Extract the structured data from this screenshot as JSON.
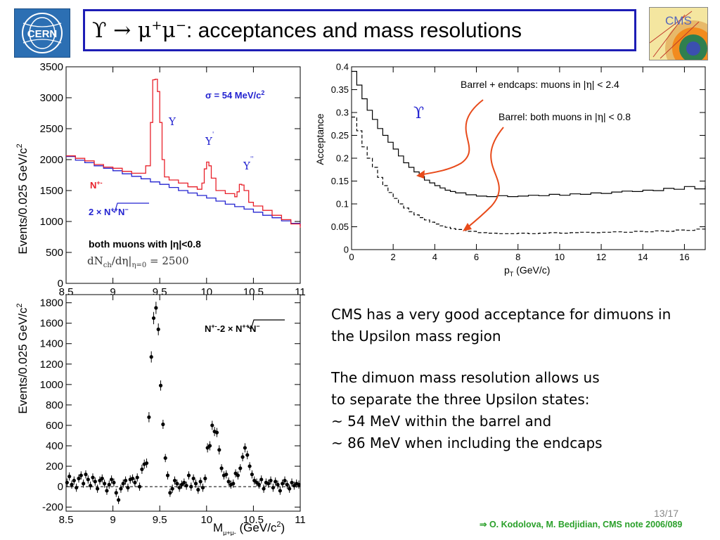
{
  "slide": {
    "title_upsilon": "ϒ",
    "title_arrow": " → μ",
    "title_plus": "+",
    "title_mu": "μ",
    "title_minus": "−",
    "title_rest": ": acceptances and mass resolutions",
    "page_number": "13/17",
    "reference": "⇒ O. Kodolova, M. Bedjidian, CMS note 2006/089",
    "logos": {
      "left": "CERN",
      "right": "CMS"
    },
    "text_block_1": [
      "CMS has a very good acceptance for dimuons in",
      "the Upsilon mass region"
    ],
    "text_block_2": [
      "The dimuon mass resolution allows us",
      "to separate the three Upsilon states:",
      "~ 54 MeV within the barrel and",
      "~ 86 MeV when including the endcaps"
    ]
  },
  "colors": {
    "title_border": "#1d1db5",
    "red": "#e8202a",
    "blue": "#2323d0",
    "reference_green": "#2aa02a",
    "arrow": "#e84a1a"
  },
  "chart_data": [
    {
      "type": "line",
      "ylabel": "Events/0.025 GeV/c",
      "ylabel_sup": "2",
      "xlim": [
        8.5,
        11
      ],
      "ylim": [
        0,
        3500
      ],
      "x_ticks": [
        "8.5",
        "9",
        "9.5",
        "10",
        "10.5",
        "11"
      ],
      "y_ticks": [
        "0",
        "500",
        "1000",
        "1500",
        "2000",
        "2500",
        "3000",
        "3500"
      ],
      "annotations": {
        "sigma": "σ = 54 MeV/c",
        "sigma_sup": "2",
        "peak1": "Υ",
        "peak2": "Υ",
        "peak2_mark": "'",
        "peak3": "Υ",
        "peak3_mark": "''",
        "red_label": "N",
        "red_label_sup": "+-",
        "blue_label_pre": "2 × ",
        "blue_label_sqrt": "N",
        "blue_label_sup1": "++",
        "blue_label_mid": "N",
        "blue_label_sup2": "−",
        "cut_text": "both muons with |η|<0.8",
        "mult_text": "dN",
        "mult_sub": "ch",
        "mult_mid": "/dη|",
        "mult_sub2": "η=0",
        "mult_val": " = 2500"
      },
      "series": [
        {
          "name": "N+-",
          "color": "#e8202a",
          "x": [
            8.5,
            8.6,
            8.7,
            8.8,
            8.9,
            9.0,
            9.1,
            9.2,
            9.3,
            9.35,
            9.4,
            9.425,
            9.45,
            9.475,
            9.5,
            9.525,
            9.55,
            9.6,
            9.7,
            9.8,
            9.9,
            9.95,
            9.975,
            10.0,
            10.025,
            10.05,
            10.1,
            10.2,
            10.3,
            10.325,
            10.35,
            10.375,
            10.4,
            10.45,
            10.5,
            10.6,
            10.7,
            10.8,
            10.9,
            11.0
          ],
          "values": [
            2060,
            2020,
            1980,
            1920,
            1880,
            1860,
            1810,
            1780,
            1780,
            1900,
            2600,
            3290,
            3300,
            3100,
            2600,
            2000,
            1720,
            1670,
            1620,
            1560,
            1520,
            1620,
            1850,
            1960,
            1900,
            1700,
            1500,
            1450,
            1400,
            1480,
            1600,
            1590,
            1500,
            1310,
            1250,
            1180,
            1100,
            1030,
            960,
            900
          ]
        },
        {
          "name": "2×sqrt(N++N−−)",
          "color": "#2323d0",
          "x": [
            8.5,
            8.6,
            8.7,
            8.8,
            8.9,
            9.0,
            9.1,
            9.2,
            9.3,
            9.4,
            9.5,
            9.6,
            9.7,
            9.8,
            9.9,
            10.0,
            10.1,
            10.2,
            10.3,
            10.4,
            10.5,
            10.6,
            10.7,
            10.8,
            10.9,
            11.0
          ],
          "values": [
            2050,
            1990,
            1950,
            1900,
            1860,
            1820,
            1770,
            1730,
            1690,
            1640,
            1600,
            1550,
            1500,
            1460,
            1420,
            1380,
            1330,
            1280,
            1240,
            1200,
            1150,
            1100,
            1060,
            1010,
            970,
            920
          ]
        }
      ]
    },
    {
      "type": "scatter",
      "ylabel": "Events/0.025 GeV/c",
      "ylabel_sup": "2",
      "xlabel": "M",
      "xlabel_sub": "μ+μ-",
      "xlabel_rest": " (GeV/c",
      "xlabel_sup": "2",
      "xlabel_end": ")",
      "xlim": [
        8.5,
        11
      ],
      "ylim": [
        -240,
        1880
      ],
      "x_ticks": [
        "8.5",
        "9",
        "9.5",
        "10",
        "10.5",
        "11"
      ],
      "y_ticks": [
        "-200",
        "0",
        "200",
        "400",
        "600",
        "800",
        "1000",
        "1200",
        "1400",
        "1600",
        "1800"
      ],
      "annotations": {
        "label_pre": "N",
        "label_sup": "+-",
        "label_mid": "-2 × ",
        "label_sqrt": "N",
        "label_sup1": "++",
        "label_n": "N",
        "label_sup2": "−"
      },
      "points": {
        "x": [
          8.51,
          8.535,
          8.56,
          8.585,
          8.61,
          8.635,
          8.66,
          8.685,
          8.71,
          8.735,
          8.76,
          8.785,
          8.81,
          8.835,
          8.86,
          8.885,
          8.91,
          8.935,
          8.96,
          8.985,
          9.01,
          9.035,
          9.06,
          9.085,
          9.11,
          9.135,
          9.16,
          9.185,
          9.21,
          9.235,
          9.26,
          9.285,
          9.31,
          9.335,
          9.36,
          9.385,
          9.41,
          9.435,
          9.46,
          9.485,
          9.51,
          9.535,
          9.56,
          9.585,
          9.61,
          9.635,
          9.66,
          9.685,
          9.71,
          9.735,
          9.76,
          9.785,
          9.81,
          9.835,
          9.86,
          9.885,
          9.91,
          9.935,
          9.96,
          9.985,
          10.01,
          10.035,
          10.06,
          10.085,
          10.11,
          10.135,
          10.16,
          10.185,
          10.21,
          10.235,
          10.26,
          10.285,
          10.31,
          10.335,
          10.36,
          10.385,
          10.41,
          10.435,
          10.46,
          10.485,
          10.51,
          10.535,
          10.56,
          10.585,
          10.61,
          10.635,
          10.66,
          10.685,
          10.71,
          10.735,
          10.76,
          10.785,
          10.81,
          10.835,
          10.86,
          10.885,
          10.91,
          10.935,
          10.96,
          10.985
        ],
        "values": [
          40,
          100,
          20,
          60,
          -10,
          80,
          110,
          30,
          120,
          70,
          10,
          90,
          50,
          -20,
          60,
          80,
          30,
          -40,
          20,
          70,
          40,
          -60,
          -130,
          -20,
          30,
          60,
          -10,
          70,
          80,
          40,
          90,
          0,
          170,
          220,
          230,
          680,
          1270,
          1650,
          1750,
          1540,
          990,
          610,
          280,
          110,
          -60,
          -20,
          60,
          30,
          -10,
          20,
          40,
          10,
          110,
          0,
          80,
          30,
          -30,
          50,
          -10,
          80,
          380,
          400,
          600,
          540,
          530,
          360,
          180,
          110,
          120,
          50,
          20,
          30,
          130,
          110,
          180,
          290,
          380,
          310,
          200,
          120,
          60,
          40,
          20,
          70,
          -20,
          40,
          30,
          60,
          -10,
          50,
          20,
          -40,
          30,
          60,
          20,
          -20,
          40,
          10,
          30,
          20
        ],
        "errors": [
          40,
          40,
          40,
          40,
          40,
          40,
          40,
          40,
          40,
          40,
          40,
          40,
          40,
          40,
          40,
          40,
          40,
          40,
          40,
          40,
          40,
          40,
          40,
          40,
          40,
          40,
          40,
          40,
          40,
          40,
          40,
          40,
          45,
          45,
          45,
          50,
          55,
          60,
          60,
          58,
          50,
          45,
          40,
          40,
          40,
          40,
          40,
          40,
          40,
          40,
          40,
          40,
          40,
          40,
          40,
          40,
          40,
          40,
          40,
          40,
          45,
          45,
          45,
          45,
          45,
          45,
          40,
          40,
          40,
          40,
          40,
          40,
          40,
          40,
          40,
          42,
          45,
          42,
          40,
          40,
          40,
          40,
          40,
          40,
          40,
          40,
          40,
          40,
          40,
          40,
          40,
          40,
          40,
          40,
          40,
          40,
          40,
          40,
          40,
          40
        ]
      }
    },
    {
      "type": "line",
      "xlabel": "p",
      "xlabel_sub": "T",
      "xlabel_rest": " (GeV/c)",
      "ylabel": "Acceptance",
      "xlim": [
        0,
        17
      ],
      "ylim": [
        0,
        0.4
      ],
      "x_ticks": [
        "0",
        "2",
        "4",
        "6",
        "8",
        "10",
        "12",
        "14",
        "16"
      ],
      "y_ticks": [
        "0",
        "0.05",
        "0.1",
        "0.15",
        "0.2",
        "0.25",
        "0.3",
        "0.35",
        "0.4"
      ],
      "annotations": {
        "upsilon": "ϒ",
        "barrel_endcaps_pre": "Barrel + endcaps: muons in |",
        "barrel_endcaps_eta": "η",
        "barrel_endcaps_post": "| < 2.4",
        "barrel_pre": "Barrel: both muons in |",
        "barrel_eta": "η",
        "barrel_post": "| < 0.8"
      },
      "series": [
        {
          "name": "Barrel + endcaps: muons in |η| < 2.4",
          "style": "solid",
          "x": [
            0,
            0.25,
            0.5,
            0.75,
            1,
            1.25,
            1.5,
            1.75,
            2,
            2.25,
            2.5,
            2.75,
            3,
            3.25,
            3.5,
            3.75,
            4,
            4.25,
            4.5,
            4.75,
            5,
            5.5,
            6,
            6.5,
            7,
            7.5,
            8,
            8.5,
            9,
            9.5,
            10,
            10.5,
            11,
            11.5,
            12,
            12.5,
            13,
            13.5,
            14,
            14.5,
            15,
            15.5,
            16,
            16.5,
            17
          ],
          "values": [
            0.39,
            0.36,
            0.33,
            0.305,
            0.285,
            0.265,
            0.25,
            0.235,
            0.22,
            0.205,
            0.19,
            0.18,
            0.17,
            0.16,
            0.152,
            0.146,
            0.14,
            0.135,
            0.13,
            0.127,
            0.124,
            0.12,
            0.117,
            0.116,
            0.118,
            0.116,
            0.117,
            0.119,
            0.118,
            0.121,
            0.119,
            0.122,
            0.121,
            0.124,
            0.123,
            0.126,
            0.128,
            0.127,
            0.13,
            0.129,
            0.134,
            0.132,
            0.138,
            0.133,
            0.14
          ]
        },
        {
          "name": "Barrel: both muons in |η| < 0.8",
          "style": "dashed",
          "x": [
            0,
            0.25,
            0.5,
            0.75,
            1,
            1.25,
            1.5,
            1.75,
            2,
            2.25,
            2.5,
            2.75,
            3,
            3.25,
            3.5,
            3.75,
            4,
            4.25,
            4.5,
            4.75,
            5,
            5.5,
            6,
            6.5,
            7,
            7.5,
            8,
            8.5,
            9,
            9.5,
            10,
            10.5,
            11,
            11.5,
            12,
            12.5,
            13,
            13.5,
            14,
            14.5,
            15,
            15.5,
            16,
            16.5,
            17
          ],
          "values": [
            0.29,
            0.26,
            0.225,
            0.2,
            0.18,
            0.158,
            0.14,
            0.125,
            0.112,
            0.1,
            0.091,
            0.083,
            0.076,
            0.07,
            0.065,
            0.06,
            0.056,
            0.052,
            0.049,
            0.046,
            0.044,
            0.04,
            0.037,
            0.036,
            0.035,
            0.035,
            0.036,
            0.035,
            0.036,
            0.037,
            0.036,
            0.037,
            0.038,
            0.037,
            0.038,
            0.039,
            0.038,
            0.04,
            0.039,
            0.041,
            0.04,
            0.043,
            0.042,
            0.045,
            0.046
          ]
        }
      ]
    }
  ]
}
